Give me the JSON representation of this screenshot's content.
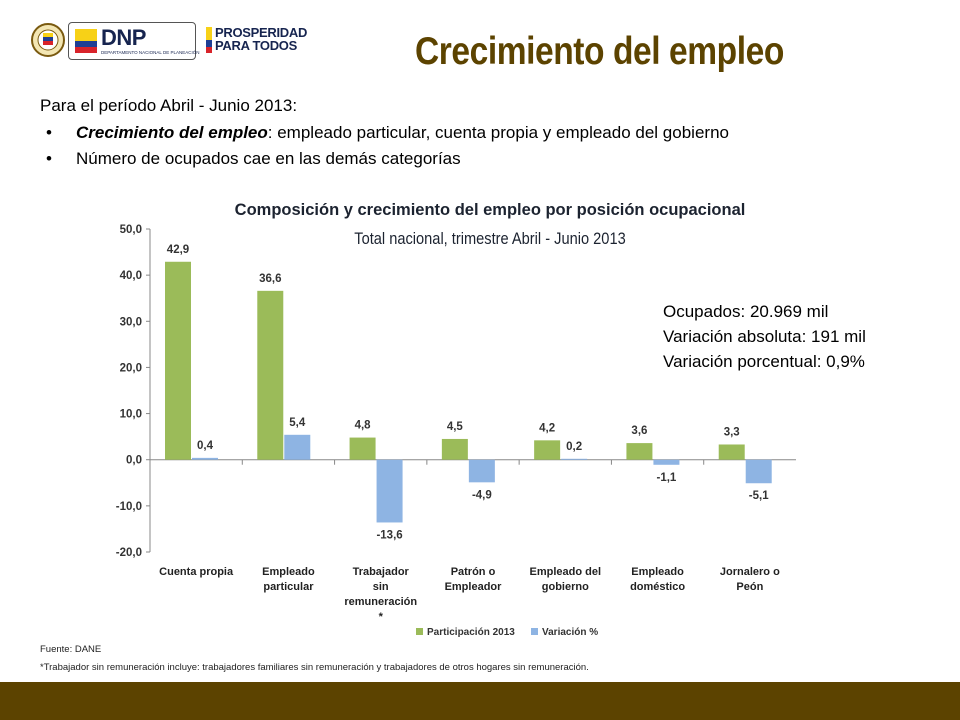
{
  "header": {
    "title": "Crecimiento del empleo",
    "dnp_logo_text": "DNP",
    "dnp_logo_sub": "DEPARTAMENTO NACIONAL DE PLANEACIÓN",
    "pp_logo_line1": "PROSPERIDAD",
    "pp_logo_line2": "PARA TODOS"
  },
  "intro": {
    "period": "Para el período Abril - Junio 2013:",
    "bullet1_bold": "Crecimiento del empleo",
    "bullet1_rest": ": empleado particular, cuenta propia y empleado del gobierno",
    "bullet2": "Número de ocupados cae en las demás categorías",
    "bullet_symbol": "•"
  },
  "stats": {
    "ocupados": "Ocupados:  20.969 mil",
    "variacion_absoluta": "Variación absoluta: 191 mil",
    "variacion_porcentual": "Variación porcentual:  0,9%"
  },
  "chart_data": {
    "type": "bar",
    "title": "Composición y crecimiento del empleo por posición ocupacional",
    "subtitle": "Total nacional, trimestre Abril - Junio 2013",
    "categories": [
      [
        "Cuenta propia"
      ],
      [
        "Empleado",
        "particular"
      ],
      [
        "Trabajador",
        "sin",
        "remuneración",
        "*"
      ],
      [
        "Patrón o",
        "Empleador"
      ],
      [
        "Empleado del",
        "gobierno"
      ],
      [
        "Empleado",
        "doméstico"
      ],
      [
        "Jornalero o",
        "Peón"
      ]
    ],
    "series": [
      {
        "name": "Participación 2013",
        "color": "#9bbb59",
        "values": [
          42.9,
          36.6,
          4.8,
          4.5,
          4.2,
          3.6,
          3.3
        ],
        "labels": [
          "42,9",
          "36,6",
          "4,8",
          "4,5",
          "4,2",
          "3,6",
          "3,3"
        ]
      },
      {
        "name": "Variación %",
        "color": "#8eb4e3",
        "values": [
          0.4,
          5.4,
          -13.6,
          -4.9,
          0.2,
          -1.1,
          -5.1
        ],
        "labels": [
          "0,4",
          "5,4",
          "-13,6",
          "-4,9",
          "0,2",
          "-1,1",
          "-5,1"
        ]
      }
    ],
    "ylim": [
      -20,
      50
    ],
    "yticks": [
      -20,
      -10,
      0,
      10,
      20,
      30,
      40,
      50
    ],
    "ytick_labels": [
      "-20,0",
      "-10,0",
      "0,0",
      "10,0",
      "20,0",
      "30,0",
      "40,0",
      "50,0"
    ],
    "legend_position": "bottom"
  },
  "footnotes": {
    "source": "Fuente: DANE",
    "note": "*Trabajador sin remuneración incluye: trabajadores familiares sin remuneración y trabajadores de otros  hogares sin remuneración."
  },
  "colors": {
    "title": "#5c4300",
    "footer_bar": "#5c4300",
    "dnp_blue": "#16244f",
    "flag_yellow": "#f7d117",
    "flag_blue": "#1f3f94",
    "flag_red": "#d8232a"
  }
}
